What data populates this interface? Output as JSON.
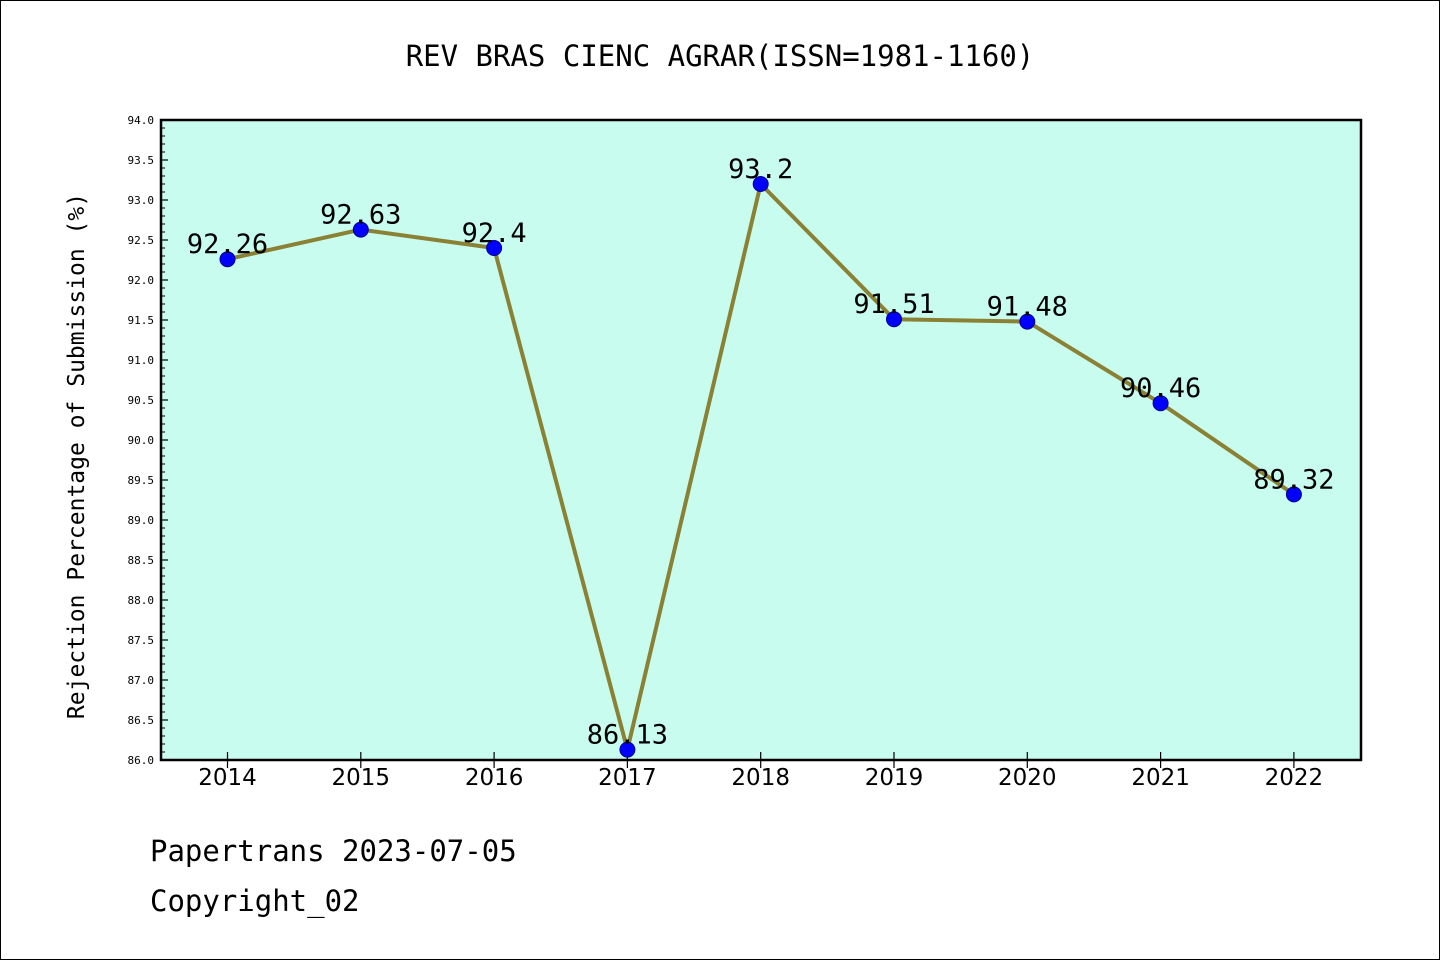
{
  "footer": {
    "line1": "Papertrans 2023-07-05",
    "line2": "Copyright_02"
  },
  "colors": {
    "plot_bg": "#c8fcee",
    "line": "#8b8134",
    "marker": "#0000ff",
    "marker_edge": "#00008b",
    "axis": "#000000"
  },
  "chart_data": {
    "type": "line",
    "title": "REV BRAS CIENC AGRAR(ISSN=1981-1160)",
    "xlabel": "",
    "ylabel": "Rejection Percentage of Submission (%)",
    "categories": [
      "2014",
      "2015",
      "2016",
      "2017",
      "2018",
      "2019",
      "2020",
      "2021",
      "2022"
    ],
    "series": [
      {
        "values": [
          92.26,
          92.63,
          92.4,
          86.13,
          93.2,
          91.51,
          91.48,
          90.46,
          89.32
        ],
        "labels": [
          "92.26",
          "92.63",
          "92.4",
          "86.13",
          "93.2",
          "91.51",
          "91.48",
          "90.46",
          "89.32"
        ]
      }
    ],
    "ylim": [
      86.0,
      94.0
    ],
    "yticks": [
      "86.0",
      "86.5",
      "87.0",
      "87.5",
      "88.0",
      "88.5",
      "89.0",
      "89.5",
      "90.0",
      "90.5",
      "91.0",
      "91.5",
      "92.0",
      "92.5",
      "93.0",
      "93.5",
      "94.0"
    ],
    "grid": false,
    "legend": "none"
  }
}
